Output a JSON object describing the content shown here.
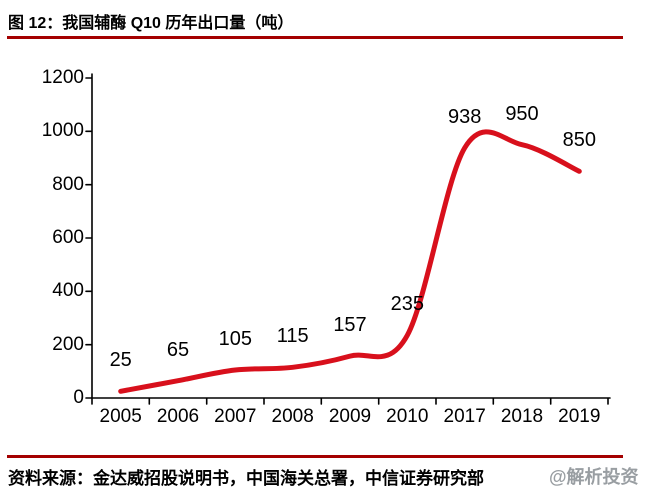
{
  "figure": {
    "title": "图 12：我国辅酶 Q10 历年出口量（吨）",
    "source": "资料来源：金达威招股说明书，中国海关总署，中信证券研究部",
    "watermark": "@解析投资"
  },
  "colors": {
    "line": "#d8101c",
    "rule": "#a40000",
    "axis": "#000000",
    "watermark": "#8f9499"
  },
  "chart_data": {
    "type": "line",
    "title": "我国辅酶 Q10 历年出口量（吨）",
    "categories": [
      "2005",
      "2006",
      "2007",
      "2008",
      "2009",
      "2010",
      "2017",
      "2018",
      "2019"
    ],
    "values": [
      25,
      65,
      105,
      115,
      157,
      235,
      938,
      950,
      850
    ],
    "xlabel": "",
    "ylabel": "",
    "ylim": [
      0,
      1200
    ],
    "ytick_step": 200,
    "yticks": [
      0,
      200,
      400,
      600,
      800,
      1000,
      1200
    ],
    "grid": false,
    "legend": "none",
    "smooth": true,
    "data_labels": true
  }
}
